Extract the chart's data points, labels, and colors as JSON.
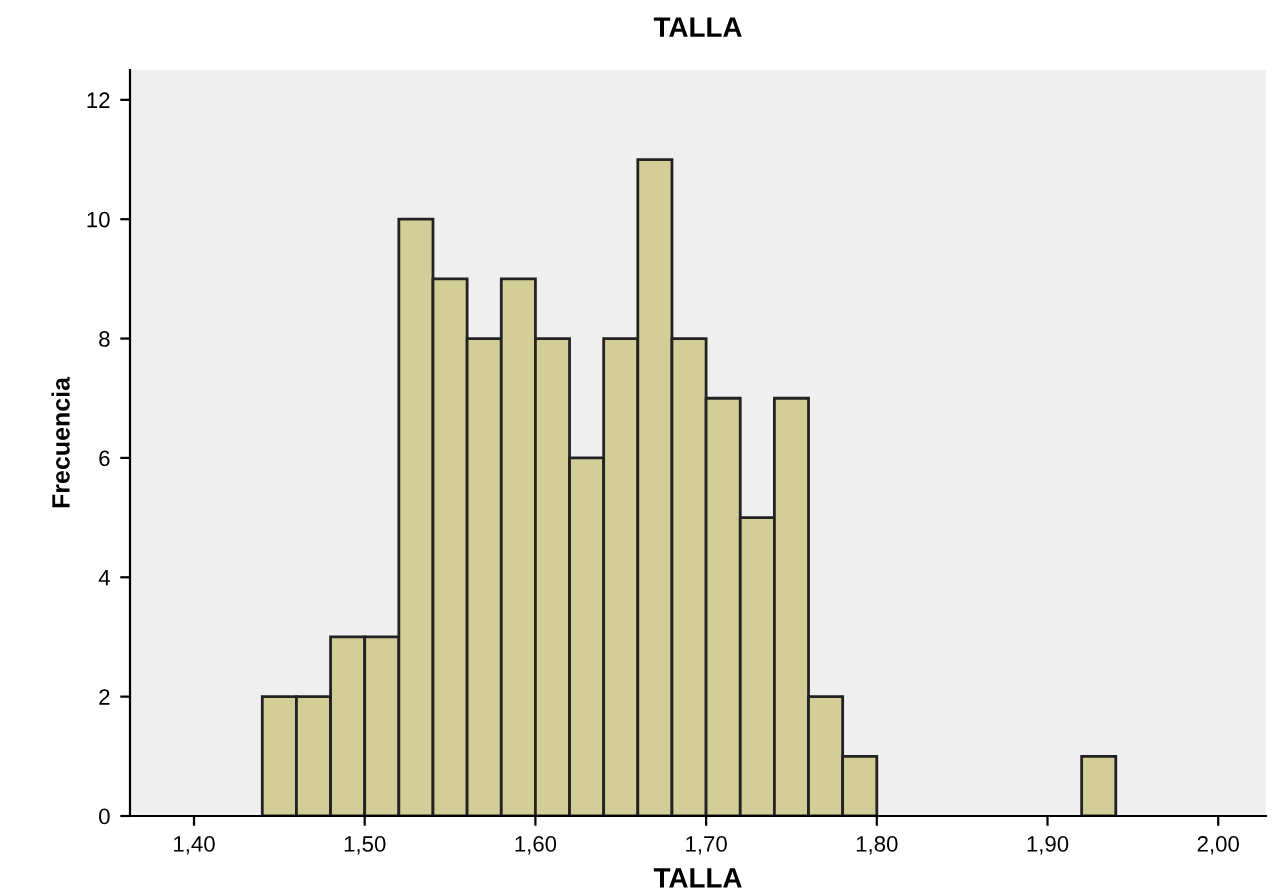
{
  "chart_data": {
    "type": "histogram",
    "title": "TALLA",
    "xlabel": "TALLA",
    "ylabel": "Frecuencia",
    "bins": [
      1.44,
      1.46,
      1.48,
      1.5,
      1.52,
      1.54,
      1.56,
      1.58,
      1.6,
      1.62,
      1.64,
      1.66,
      1.68,
      1.7,
      1.72,
      1.74,
      1.76,
      1.78,
      1.8,
      1.82,
      1.84,
      1.86,
      1.88,
      1.9,
      1.92,
      1.94
    ],
    "values": [
      2,
      2,
      3,
      3,
      10,
      9,
      8,
      9,
      8,
      6,
      8,
      11,
      8,
      7,
      5,
      7,
      2,
      1,
      0,
      0,
      0,
      0,
      0,
      0,
      1
    ],
    "color": "#d3ce97",
    "xlim": [
      1.3625,
      2.028
    ],
    "xticks": [
      {
        "value": 1.4,
        "label": "1,40"
      },
      {
        "value": 1.5,
        "label": "1,50"
      },
      {
        "value": 1.6,
        "label": "1,60"
      },
      {
        "value": 1.7,
        "label": "1,70"
      },
      {
        "value": 1.8,
        "label": "1,80"
      },
      {
        "value": 1.9,
        "label": "1,90"
      },
      {
        "value": 2.0,
        "label": "2,00"
      }
    ],
    "ylim": [
      0,
      12.5
    ],
    "yticks": [
      0,
      2,
      4,
      6,
      8,
      10,
      12
    ],
    "grid": false
  }
}
